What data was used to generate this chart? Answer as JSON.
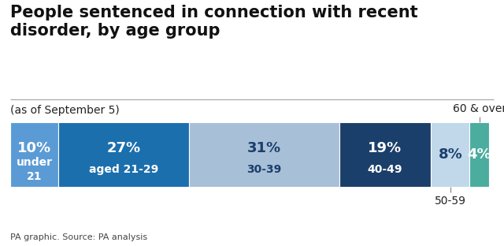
{
  "title": "People sentenced in connection with recent\ndisorder, by age group",
  "subtitle": "(as of September 5)",
  "footer": "PA graphic. Source: PA analysis",
  "values": [
    10,
    27,
    31,
    19,
    8,
    4
  ],
  "pct_labels": [
    "10%",
    "27%",
    "31%",
    "19%",
    "8%",
    "4%"
  ],
  "age_labels": [
    "under\n21",
    "aged 21-29",
    "30-39",
    "40-49",
    "",
    ""
  ],
  "colors": [
    "#5b9bd5",
    "#1c6fad",
    "#a8bfd8",
    "#1b3f6b",
    "#c0d8ea",
    "#4aad9e"
  ],
  "text_colors": [
    "#ffffff",
    "#ffffff",
    "#1b3f6b",
    "#ffffff",
    "#1b3f6b",
    "#ffffff"
  ],
  "background_color": "#ffffff",
  "title_fontsize": 15,
  "subtitle_fontsize": 10,
  "label_fontsize_pct": 13,
  "label_fontsize_age": 10,
  "footer_fontsize": 8
}
